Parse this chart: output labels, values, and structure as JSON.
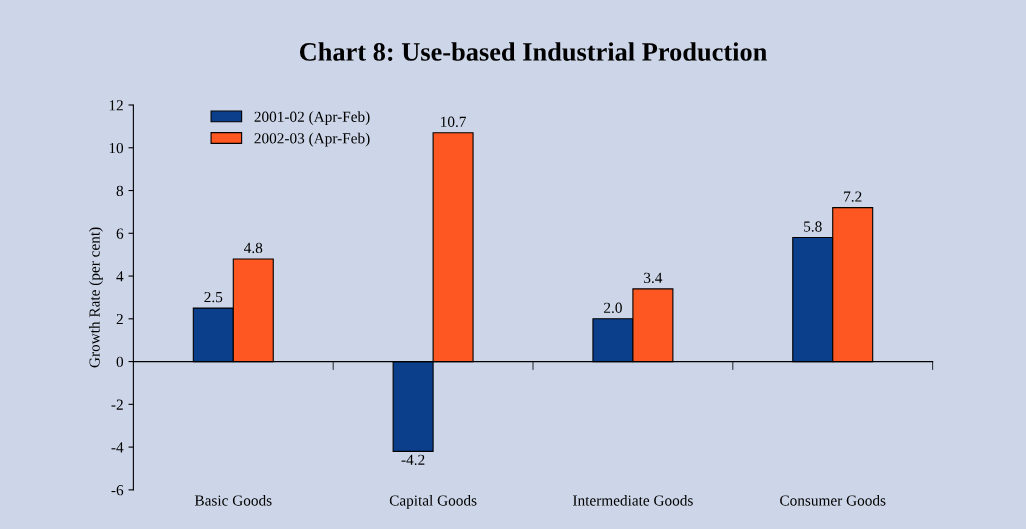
{
  "chart_data": {
    "type": "bar",
    "title": "Chart 8: Use-based Industrial Production",
    "ylabel": "Growth Rate (per cent)",
    "categories": [
      "Basic Goods",
      "Capital Goods",
      "Intermediate Goods",
      "Consumer Goods"
    ],
    "series": [
      {
        "name": "2001-02 (Apr-Feb)",
        "color": "#0b3f8c",
        "values": [
          2.5,
          -4.2,
          2.0,
          5.8
        ],
        "value_labels": [
          "2.5",
          "-4.2",
          "2.0",
          "5.8"
        ]
      },
      {
        "name": "2002-03 (Apr-Feb)",
        "color": "#ff5722",
        "values": [
          4.8,
          10.7,
          3.4,
          7.2
        ],
        "value_labels": [
          "4.8",
          "10.7",
          "3.4",
          "7.2"
        ]
      }
    ],
    "ylim": [
      -6,
      12
    ],
    "yticks": [
      -6,
      -4,
      -2,
      0,
      2,
      4,
      6,
      8,
      10,
      12
    ],
    "legend": "top left"
  }
}
